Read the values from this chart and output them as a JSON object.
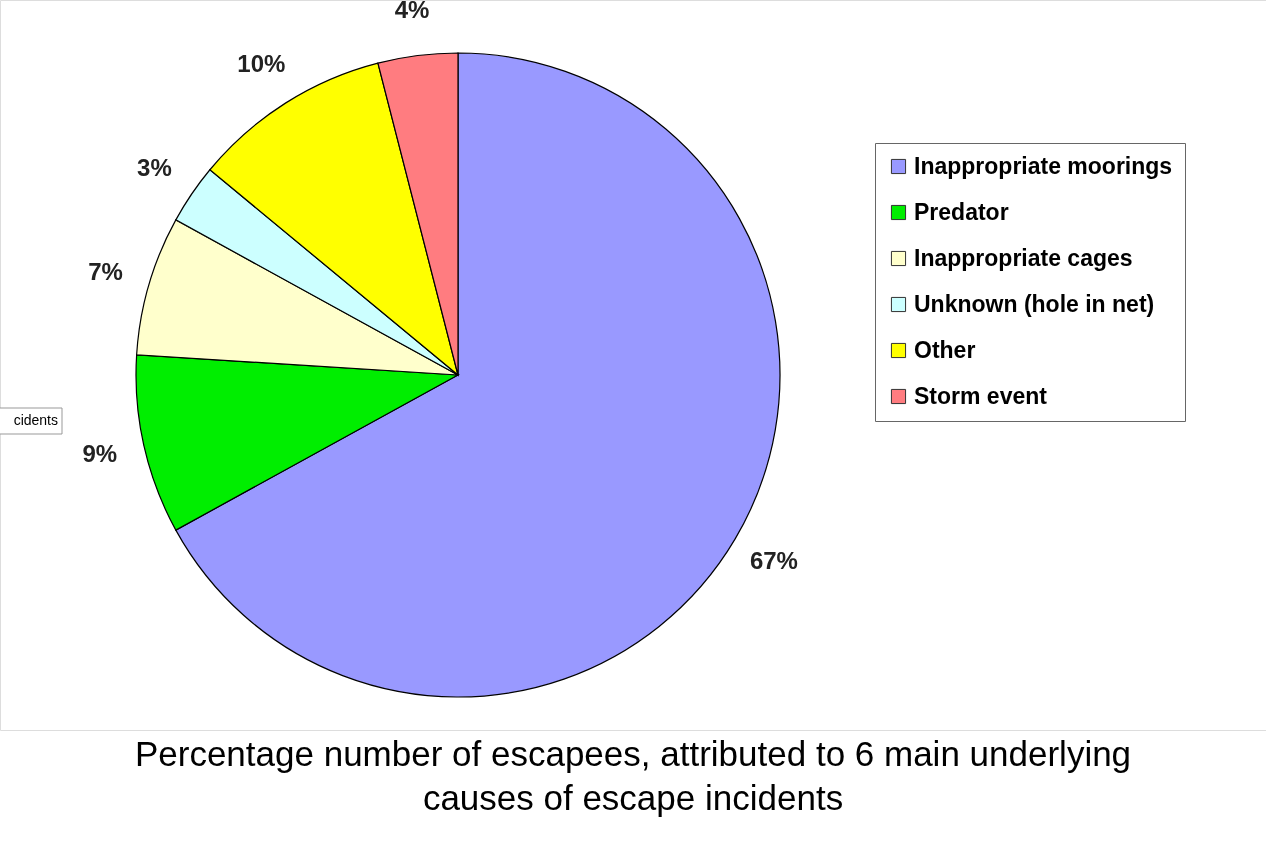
{
  "chart_data": {
    "type": "pie",
    "title": "Percentage number of escapees, attributed to 6 main underlying causes of escape incidents",
    "categories": [
      "Inappropriate moorings",
      "Predator",
      "Inappropriate cages",
      "Unknown (hole in net)",
      "Other",
      "Storm event"
    ],
    "values": [
      67,
      9,
      7,
      3,
      10,
      4
    ],
    "value_labels": [
      "67%",
      "9%",
      "7%",
      "3%",
      "10%",
      "4%"
    ],
    "colors": [
      "#9999ff",
      "#00ee00",
      "#ffffcc",
      "#ccffff",
      "#ffff00",
      "#ff7c80"
    ],
    "legend": "right",
    "annotations": [
      "cidents"
    ]
  }
}
